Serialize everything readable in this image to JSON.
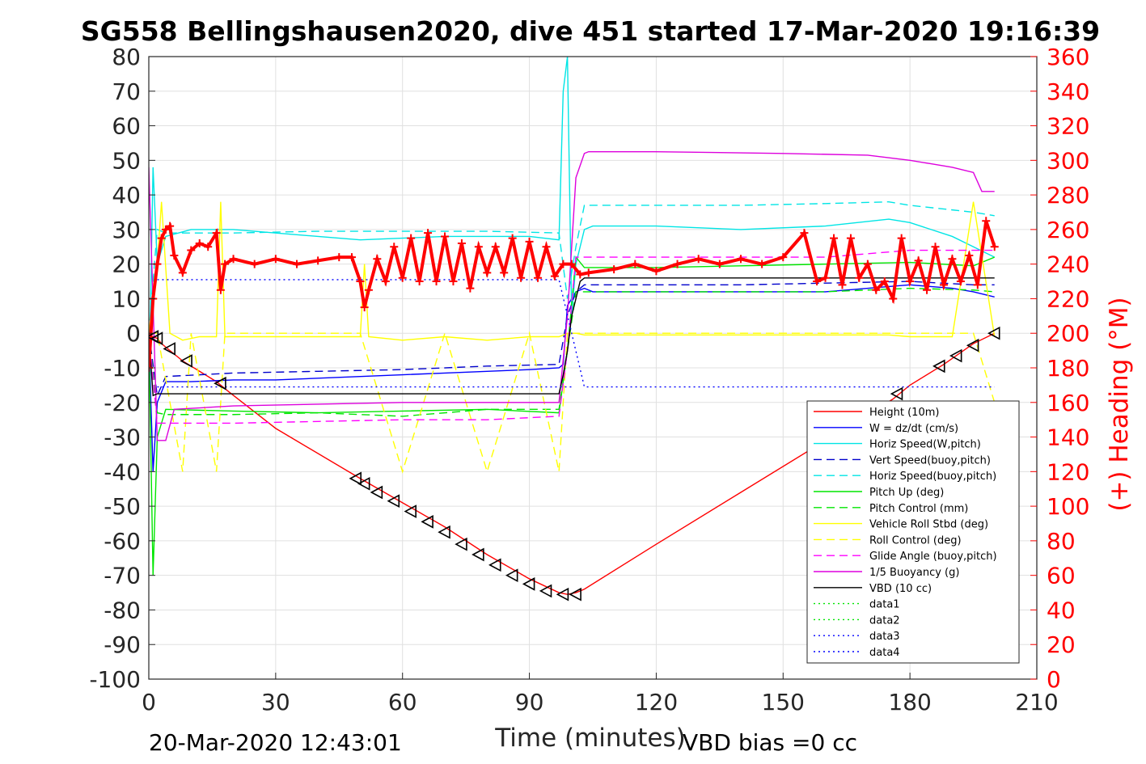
{
  "chart_data": {
    "type": "line",
    "title": "SG558 Bellingshausen2020, dive 451 started 17-Mar-2020 19:16:39",
    "xlabel": "Time (minutes)",
    "ylabel_right": "(+) Heading (°M)",
    "xlim": [
      0,
      210
    ],
    "ylim": [
      -100,
      80
    ],
    "ylim_right": [
      0,
      360
    ],
    "x_ticks": [
      "0",
      "30",
      "60",
      "90",
      "120",
      "150",
      "180",
      "210"
    ],
    "y_ticks": [
      "80",
      "70",
      "60",
      "50",
      "40",
      "30",
      "20",
      "10",
      "0",
      "-10",
      "-20",
      "-30",
      "-40",
      "-50",
      "-60",
      "-70",
      "-80",
      "-90",
      "-100"
    ],
    "y_right_ticks": [
      "360",
      "340",
      "320",
      "300",
      "280",
      "260",
      "240",
      "220",
      "200",
      "180",
      "160",
      "140",
      "120",
      "100",
      "80",
      "60",
      "40",
      "20",
      "0"
    ],
    "grid": true,
    "legend_position": "bottom-right",
    "footer_left": "20-Mar-2020 12:43:01",
    "footer_right": "VBD bias =0 cc",
    "series": [
      {
        "name": "Height (10m)",
        "color": "#ff0000",
        "style": "solid",
        "x": [
          0,
          1,
          2,
          3,
          5,
          8,
          12,
          16,
          19,
          30,
          50,
          60,
          70,
          80,
          90,
          97,
          99,
          101,
          103,
          120,
          140,
          160,
          176,
          180,
          188,
          195,
          200
        ],
        "y": [
          -1,
          -1,
          -1.5,
          -3,
          -5,
          -8,
          -11,
          -14,
          -17,
          -27.5,
          -42,
          -49,
          -56,
          -64,
          -71,
          -75,
          -75.5,
          -75,
          -74,
          -61,
          -46,
          -31,
          -19,
          -15,
          -9,
          -3,
          0
        ]
      },
      {
        "name": "W = dz/dt (cm/s)",
        "color": "#0000ff",
        "style": "solid",
        "x": [
          0,
          1,
          2,
          4,
          10,
          20,
          30,
          40,
          50,
          60,
          70,
          80,
          90,
          97,
          98,
          99,
          101,
          103,
          105,
          120,
          140,
          160,
          175,
          180,
          190,
          195,
          200
        ],
        "y": [
          0,
          -40,
          -20,
          -14,
          -14,
          -13.5,
          -13.5,
          -13,
          -12.5,
          -12,
          -11.5,
          -11,
          -10.5,
          -10,
          -9,
          8,
          12,
          13,
          12,
          12,
          12,
          12,
          13.5,
          14,
          13,
          12,
          10.5
        ]
      },
      {
        "name": "Horiz Speed(W,pitch)",
        "color": "#00e5e5",
        "style": "solid",
        "x": [
          0,
          1,
          2,
          4,
          10,
          20,
          30,
          40,
          50,
          60,
          70,
          80,
          90,
          97,
          98,
          99,
          100,
          101,
          103,
          105,
          120,
          140,
          160,
          175,
          180,
          190,
          195,
          200
        ],
        "y": [
          -20,
          48,
          20,
          28,
          30,
          30,
          29,
          28,
          27,
          27.5,
          28,
          28,
          28,
          27,
          70,
          80,
          5,
          20,
          30,
          31,
          31,
          30,
          31,
          33,
          32,
          28,
          25,
          22
        ]
      },
      {
        "name": "Vert Speed(buoy,pitch)",
        "color": "#0000cc",
        "style": "dashed",
        "x": [
          0,
          2,
          4,
          20,
          40,
          60,
          80,
          97,
          99,
          101,
          103,
          120,
          140,
          160,
          180,
          195,
          200
        ],
        "y": [
          0,
          -18,
          -12.5,
          -11.5,
          -11,
          -10.5,
          -9.5,
          -9,
          5,
          12,
          14,
          14,
          14,
          14.5,
          15,
          14,
          14
        ]
      },
      {
        "name": "Horiz Speed(buoy,pitch)",
        "color": "#00e5e5",
        "style": "dashed",
        "x": [
          0,
          2,
          4,
          20,
          40,
          60,
          80,
          97,
          99,
          101,
          103,
          120,
          140,
          160,
          175,
          180,
          195,
          200
        ],
        "y": [
          0,
          30,
          29,
          29,
          29.5,
          29.5,
          29.5,
          29,
          10,
          25,
          37,
          37,
          37,
          37.5,
          38,
          37,
          35,
          34
        ]
      },
      {
        "name": "Pitch Up (deg)",
        "color": "#00e600",
        "style": "solid",
        "x": [
          0,
          1,
          2,
          4,
          20,
          40,
          60,
          80,
          97,
          99,
          101,
          103,
          120,
          140,
          160,
          180,
          195,
          200
        ],
        "y": [
          0,
          -70,
          -30,
          -22,
          -22.5,
          -23,
          -22.5,
          -22,
          -23,
          -5,
          22,
          19,
          19,
          19.5,
          20,
          20.5,
          19.5,
          22
        ]
      },
      {
        "name": "Pitch Control (mm)",
        "color": "#00e600",
        "style": "dashed",
        "x": [
          0,
          2,
          4,
          20,
          40,
          60,
          80,
          97,
          99,
          101,
          103,
          120,
          140,
          160,
          180,
          195,
          200
        ],
        "y": [
          0,
          -23,
          -23.5,
          -23.5,
          -23,
          -24,
          -22,
          -22,
          -5,
          12,
          12,
          12,
          12,
          12,
          13,
          12.5,
          12
        ]
      },
      {
        "name": "Vehicle Roll Stbd (deg)",
        "color": "#ffff00",
        "style": "solid",
        "x": [
          0,
          2,
          3,
          5,
          8,
          12,
          16,
          17,
          18,
          30,
          50,
          51,
          52,
          60,
          70,
          80,
          90,
          97,
          99,
          101,
          103,
          120,
          140,
          160,
          175,
          180,
          190,
          195,
          200
        ],
        "y": [
          0,
          20,
          38,
          0,
          -2,
          -1,
          -1,
          38,
          -1,
          -1,
          -1,
          20,
          -1,
          -2,
          -1,
          -2,
          -1,
          -1,
          0,
          0,
          -0.5,
          -0.5,
          -0.5,
          -0.5,
          -0.5,
          -1,
          -1,
          38,
          -1
        ]
      },
      {
        "name": "Roll Control (deg)",
        "color": "#ffff00",
        "style": "dashed",
        "x": [
          0,
          2,
          8,
          10,
          16,
          18,
          30,
          50,
          60,
          70,
          80,
          90,
          97,
          99,
          103,
          120,
          160,
          180,
          195,
          200
        ],
        "y": [
          0,
          0,
          -40,
          0,
          -40,
          0,
          0,
          0,
          -40,
          0,
          -40,
          0,
          -40,
          0,
          0,
          0,
          0,
          0,
          0,
          -20
        ]
      },
      {
        "name": "Glide Angle (buoy,pitch)",
        "color": "#ff00ff",
        "style": "dashed",
        "x": [
          0,
          2,
          4,
          20,
          40,
          60,
          80,
          97,
          99,
          101,
          103,
          120,
          140,
          160,
          180,
          195,
          200
        ],
        "y": [
          0,
          -26,
          -26,
          -26,
          -25.5,
          -25,
          -25,
          -24,
          -5,
          22,
          22,
          22,
          22,
          22,
          24,
          24,
          24
        ]
      },
      {
        "name": "1/5 Buoyancy (g)",
        "color": "#dd00dd",
        "style": "solid",
        "x": [
          0,
          2,
          4,
          6,
          20,
          40,
          60,
          80,
          97,
          99,
          101,
          103,
          104,
          120,
          150,
          170,
          180,
          185,
          190,
          195,
          197,
          200
        ],
        "y": [
          48,
          -31,
          -31,
          -22,
          -21,
          -20.5,
          -20,
          -20,
          -20,
          5,
          45,
          52,
          52.5,
          52.5,
          52,
          51.5,
          50,
          49,
          48,
          46.5,
          41,
          41
        ]
      },
      {
        "name": "VBD (10 cc)",
        "color": "#000000",
        "style": "solid",
        "x": [
          0,
          1,
          2,
          5,
          20,
          40,
          60,
          80,
          96,
          97,
          98,
          99,
          100,
          101,
          102,
          103,
          120,
          140,
          160,
          180,
          195,
          200
        ],
        "y": [
          0,
          -18,
          -17.5,
          -17.5,
          -17.5,
          -17.5,
          -17.5,
          -17.5,
          -17.5,
          -17.5,
          -12,
          -5,
          5,
          10,
          15,
          16,
          16,
          16,
          16,
          16,
          16,
          16
        ]
      },
      {
        "name": "data1",
        "color": "#00e600",
        "style": "dotted",
        "x": [],
        "y": []
      },
      {
        "name": "data2",
        "color": "#00e600",
        "style": "dotted",
        "x": [],
        "y": []
      },
      {
        "name": "data3",
        "color": "#0000ff",
        "style": "dotted",
        "x": [
          2,
          100
        ],
        "y": [
          -15.5,
          -15.5
        ]
      },
      {
        "name": "data4",
        "color": "#0000ff",
        "style": "dotted",
        "x": [
          2,
          97,
          103,
          200
        ],
        "y": [
          15.5,
          15.5,
          -15.5,
          -15.5
        ]
      }
    ],
    "heading": {
      "axis": "right",
      "color": "#ff0000",
      "marker": "+",
      "x": [
        0,
        1,
        2,
        3,
        4,
        5,
        6,
        8,
        10,
        12,
        14,
        16,
        17,
        18,
        20,
        25,
        30,
        35,
        40,
        45,
        48,
        50,
        51,
        52,
        54,
        56,
        58,
        60,
        62,
        64,
        66,
        68,
        70,
        72,
        74,
        76,
        78,
        80,
        82,
        84,
        86,
        88,
        90,
        92,
        94,
        96,
        98,
        100,
        102,
        104,
        110,
        115,
        120,
        125,
        130,
        135,
        140,
        145,
        150,
        155,
        158,
        160,
        162,
        164,
        166,
        168,
        170,
        172,
        174,
        176,
        178,
        180,
        182,
        184,
        186,
        188,
        190,
        192,
        194,
        196,
        198,
        200
      ],
      "y": [
        180,
        220,
        240,
        255,
        260,
        262,
        245,
        235,
        248,
        252,
        250,
        258,
        225,
        240,
        243,
        240,
        243,
        240,
        242,
        244,
        244,
        230,
        215,
        225,
        243,
        230,
        250,
        232,
        255,
        230,
        258,
        230,
        256,
        230,
        252,
        226,
        250,
        235,
        250,
        235,
        255,
        232,
        253,
        232,
        250,
        233,
        240,
        240,
        234,
        235,
        237,
        240,
        236,
        240,
        243,
        240,
        243,
        240,
        244,
        258,
        230,
        232,
        255,
        228,
        255,
        232,
        240,
        225,
        230,
        220,
        255,
        230,
        242,
        225,
        250,
        228,
        243,
        230,
        245,
        228,
        265,
        250
      ]
    },
    "markers": {
      "left_triangle_x": [
        1,
        2,
        5,
        9,
        17,
        49,
        51,
        54,
        58,
        62,
        66,
        70,
        74,
        78,
        82,
        86,
        90,
        94,
        98,
        101,
        177,
        187,
        191,
        195,
        200
      ],
      "left_triangle_y": [
        -1,
        -1.5,
        -4.5,
        -8,
        -14.5,
        -42,
        -43.5,
        -46,
        -48.5,
        -51.5,
        -54.5,
        -57.5,
        -61,
        -64,
        -67,
        -70,
        -72.5,
        -74.5,
        -75.5,
        -75.5,
        -17.5,
        -9.5,
        -6.5,
        -3.5,
        0
      ]
    }
  }
}
